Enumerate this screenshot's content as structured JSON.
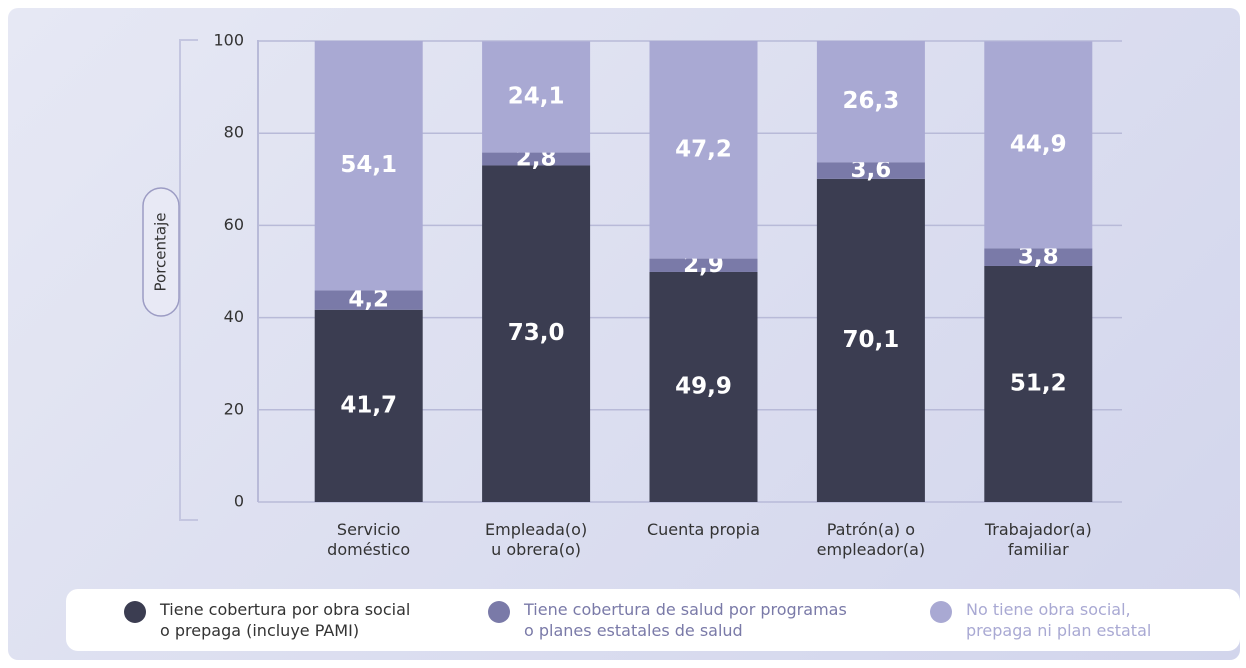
{
  "chart_data": {
    "type": "stacked-bar",
    "y_label": "Porcentaje",
    "categories": [
      "Servicio\ndoméstico",
      "Empleada(o)\nu obrera(o)",
      "Cuenta propia",
      "Patrón(a) o\nempleador(a)",
      "Trabajador(a)\nfamiliar"
    ],
    "series": [
      {
        "name": "Tiene cobertura por obra social\no prepaga (incluye PAMI)",
        "color": "#3b3d51",
        "values": [
          41.7,
          73.0,
          49.9,
          70.1,
          51.2
        ],
        "value_labels": [
          "41,7",
          "73,0",
          "49,9",
          "70,1",
          "51,2"
        ]
      },
      {
        "name": "Tiene cobertura de salud por programas\no planes estatales de salud",
        "color": "#7a7aa8",
        "values": [
          4.2,
          2.8,
          2.9,
          3.6,
          3.8
        ],
        "value_labels": [
          "4,2",
          "2,8",
          "2,9",
          "3,6",
          "3,8"
        ]
      },
      {
        "name": "No tiene obra social,\nprepaga ni plan estatal",
        "color": "#a9a9d3",
        "values": [
          54.1,
          24.1,
          47.2,
          26.3,
          44.9
        ],
        "value_labels": [
          "54,1",
          "24,1",
          "47,2",
          "26,3",
          "44,9"
        ]
      }
    ],
    "ylim": [
      0,
      100
    ],
    "yticks": [
      0,
      20,
      40,
      60,
      80,
      100
    ],
    "grid": true
  }
}
